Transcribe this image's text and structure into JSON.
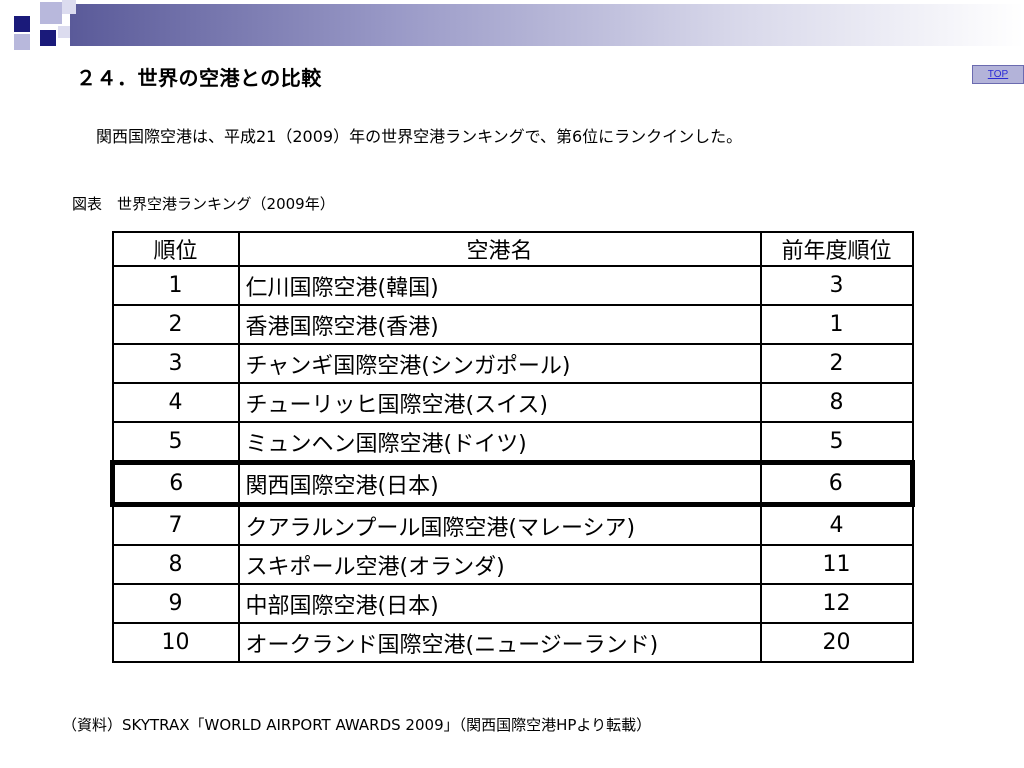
{
  "slide": {
    "title": "２４．世界の空港との比較",
    "top_link": "TOP",
    "intro": "関西国際空港は、平成21（2009）年の世界空港ランキングで、第6位にランクインした。",
    "caption": "図表　世界空港ランキング（2009年）",
    "source": "（資料）SKYTRAX「WORLD AIRPORT AWARDS 2009」（関西国際空港HPより転載）"
  },
  "table": {
    "headers": [
      "順位",
      "空港名",
      "前年度順位"
    ],
    "rows": [
      {
        "rank": "1",
        "name": "仁川国際空港(韓国)",
        "prev": "3"
      },
      {
        "rank": "2",
        "name": "香港国際空港(香港)",
        "prev": "1"
      },
      {
        "rank": "3",
        "name": "チャンギ国際空港(シンガポール)",
        "prev": "2"
      },
      {
        "rank": "4",
        "name": "チューリッヒ国際空港(スイス)",
        "prev": "8"
      },
      {
        "rank": "5",
        "name": "ミュンヘン国際空港(ドイツ)",
        "prev": "5"
      },
      {
        "rank": "6",
        "name": "関西国際空港(日本)",
        "prev": "6"
      },
      {
        "rank": "7",
        "name": "クアラルンプール国際空港(マレーシア)",
        "prev": "4"
      },
      {
        "rank": "8",
        "name": "スキポール空港(オランダ)",
        "prev": "11"
      },
      {
        "rank": "9",
        "name": "中部国際空港(日本)",
        "prev": "12"
      },
      {
        "rank": "10",
        "name": "オークランド国際空港(ニュージーランド)",
        "prev": "20"
      }
    ],
    "highlighted_rank": "6"
  },
  "colors": {
    "band_dark": "#5a5a99",
    "square_navy": "#1a1a7a",
    "square_lavender": "#b8b8dc",
    "top_button_bg": "#b3b3d9",
    "top_link_text": "#2b2bd6"
  }
}
